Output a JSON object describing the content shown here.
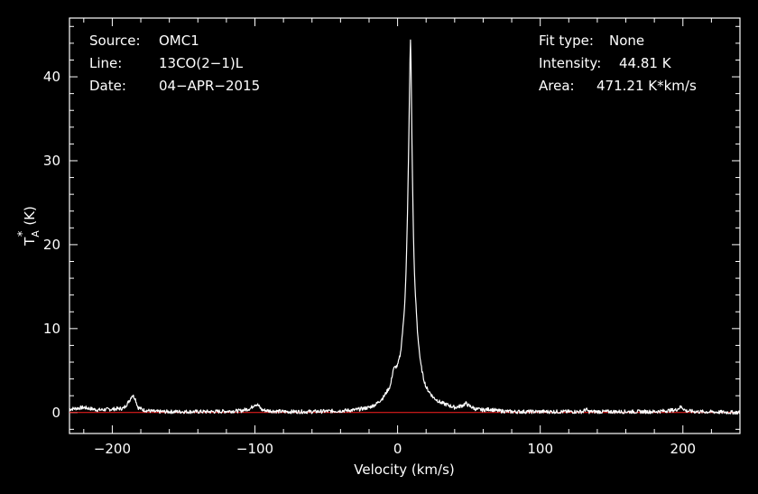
{
  "chart_data": {
    "type": "line",
    "xlabel": "Velocity (km/s)",
    "ylabel_main": "T",
    "ylabel_sub": "A",
    "ylabel_sup": "*",
    "ylabel_unit": "(K)",
    "xlim": [
      -230,
      240
    ],
    "ylim": [
      -2.5,
      47
    ],
    "xticks": [
      -200,
      -100,
      0,
      100,
      200
    ],
    "xtick_labels": [
      "−200",
      "−100",
      "0",
      "100",
      "200"
    ],
    "yticks": [
      0,
      10,
      20,
      30,
      40
    ],
    "ytick_labels": [
      "0",
      "10",
      "20",
      "30",
      "40"
    ],
    "baseline": 0,
    "colors": {
      "background": "#000000",
      "axes": "#ffffff",
      "spectrum": "#ffffff",
      "baseline": "#ff2020"
    },
    "series": [
      {
        "x": [
          -230,
          -220,
          -210,
          -200,
          -192,
          -188,
          -186,
          -184,
          -182,
          -178,
          -170,
          -150,
          -130,
          -110,
          -103,
          -100,
          -98,
          -95,
          -90,
          -80,
          -60,
          -40,
          -30,
          -20,
          -15,
          -10,
          -5,
          -3,
          0,
          2,
          4,
          5,
          6,
          7,
          8,
          8.5,
          9,
          9.5,
          10,
          11,
          12,
          14,
          16,
          18,
          20,
          25,
          30,
          40,
          45,
          48,
          50,
          55,
          60,
          65,
          70,
          80,
          100,
          130,
          132,
          134,
          150,
          180,
          195,
          199,
          202,
          210,
          240
        ],
        "y": [
          0.4,
          0.6,
          0.3,
          0.4,
          0.5,
          1.4,
          2.1,
          1.7,
          0.6,
          0.3,
          0.1,
          0.1,
          0.1,
          0.2,
          0.5,
          1.0,
          0.9,
          0.3,
          0.2,
          0.1,
          0.1,
          0.2,
          0.3,
          0.6,
          1.0,
          1.8,
          3.2,
          5.2,
          5.6,
          7.0,
          10.5,
          13.0,
          17.0,
          24.0,
          34.0,
          40.0,
          44.81,
          41.0,
          33.0,
          22.0,
          15.5,
          9.5,
          6.0,
          4.2,
          3.0,
          1.8,
          1.2,
          0.6,
          0.8,
          1.1,
          0.8,
          0.4,
          0.3,
          0.4,
          0.2,
          0.1,
          0.1,
          0.1,
          0.4,
          0.1,
          0.1,
          0.1,
          0.3,
          0.7,
          0.2,
          0.1,
          0.0
        ]
      }
    ]
  },
  "info_left": {
    "source_label": "Source:",
    "source_value": "OMC1",
    "line_label": "Line:",
    "line_value": "13CO(2−1)L",
    "date_label": "Date:",
    "date_value": "04−APR−2015"
  },
  "info_right": {
    "fit_label": "Fit type:",
    "fit_value": "None",
    "intensity_label": "Intensity:",
    "intensity_value": "44.81 K",
    "area_label": "Area:",
    "area_value": "471.21 K*km/s"
  }
}
